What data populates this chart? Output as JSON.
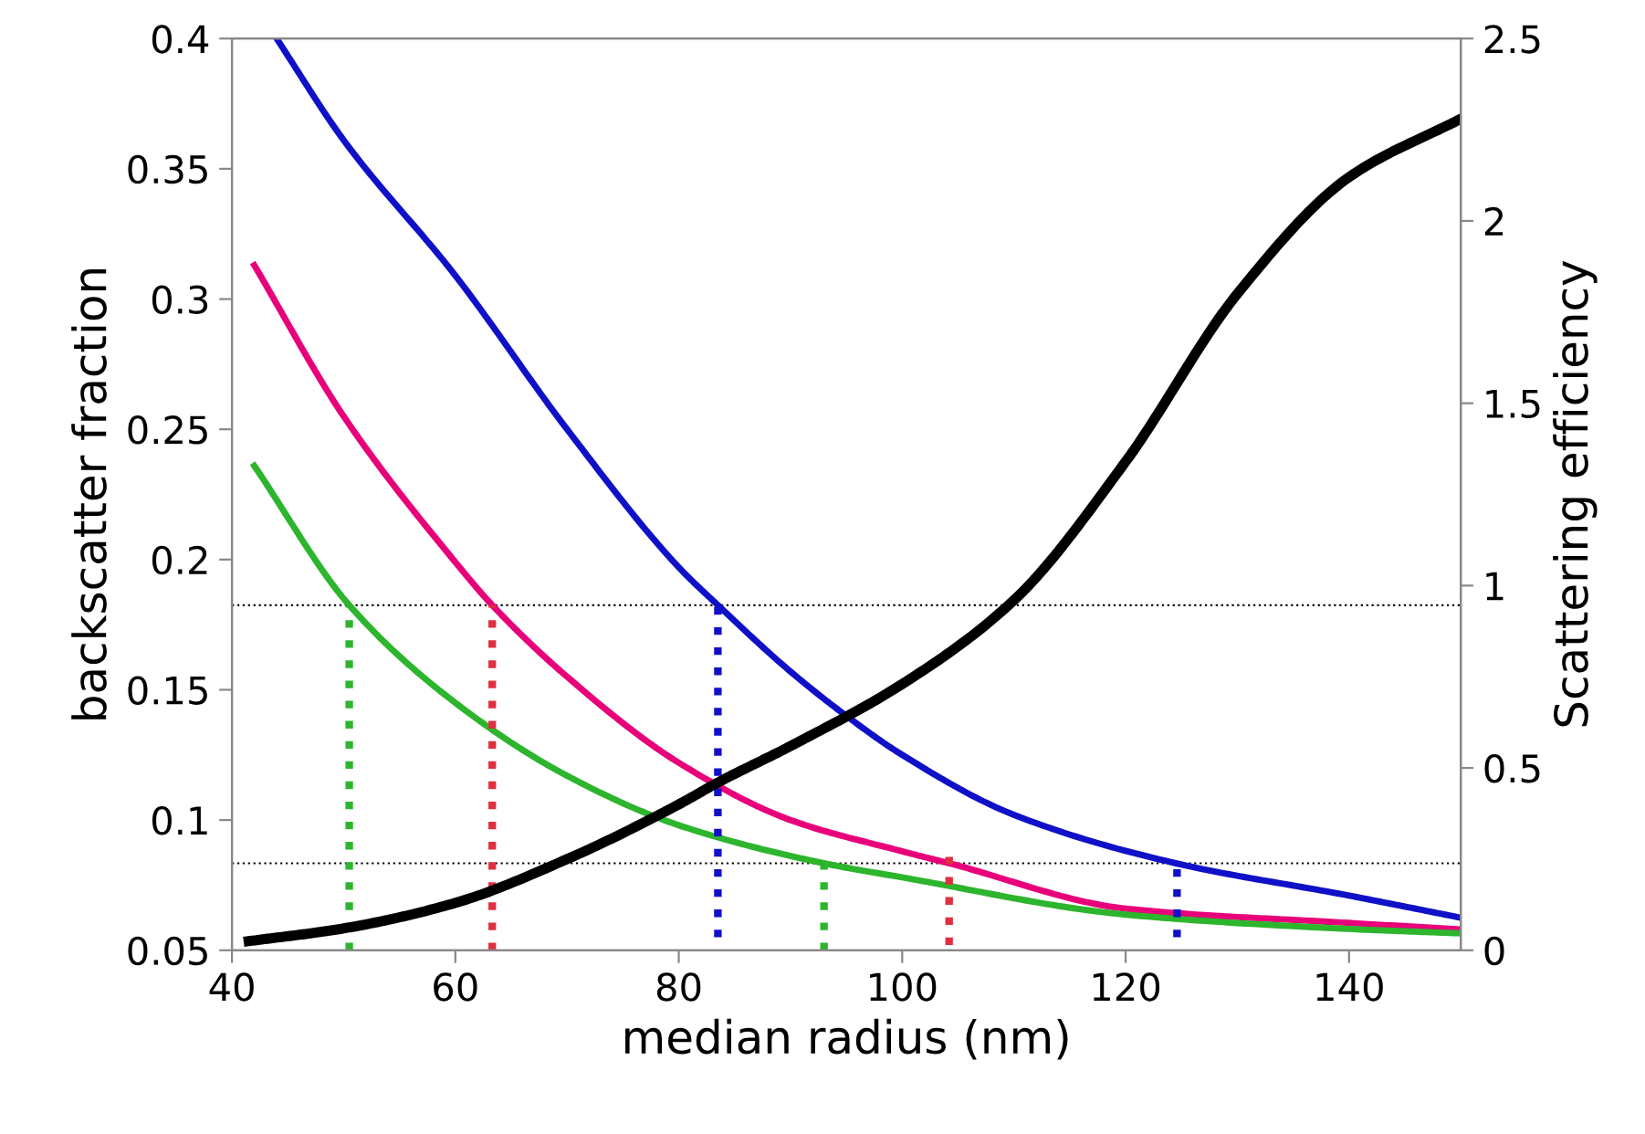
{
  "chart_data": {
    "type": "line",
    "xlabel": "median radius (nm)",
    "ylabel": "backscatter fraction",
    "y2label": "Scattering efficiency",
    "xlim": [
      40,
      150
    ],
    "xticks": [
      40,
      60,
      80,
      100,
      120,
      140
    ],
    "ylim": [
      0.05,
      0.4
    ],
    "yticks": [
      0.05,
      0.1,
      0.15,
      0.2,
      0.25,
      0.3,
      0.35,
      0.4
    ],
    "y2lim": [
      0,
      2.5
    ],
    "y2ticks": [
      0,
      0.5,
      1,
      1.5,
      2,
      2.5
    ],
    "grid": false,
    "legend": false,
    "marker": "none",
    "ref_lines": [
      {
        "axis": "y",
        "value": 0.1825,
        "color": "#000000",
        "line_style": "dotted"
      },
      {
        "axis": "y",
        "value": 0.0834,
        "color": "#000000",
        "line_style": "dotted"
      }
    ],
    "series": [
      {
        "color": "#1010c8",
        "line_style": "solid",
        "x": [
          44,
          50,
          60,
          70,
          80,
          83.5,
          90,
          95,
          100,
          110,
          124.5,
          140,
          150
        ],
        "values": [
          0.4,
          0.361,
          0.309,
          0.25,
          0.197,
          0.1825,
          0.157,
          0.14,
          0.125,
          0.102,
          0.0834,
          0.071,
          0.0625
        ]
      },
      {
        "color": "#e8007a",
        "line_style": "solid",
        "x": [
          42,
          50,
          60,
          63.3,
          70,
          80,
          90,
          100,
          104.2,
          120,
          140,
          150
        ],
        "values": [
          0.313,
          0.255,
          0.199,
          0.1825,
          0.155,
          0.122,
          0.1,
          0.088,
          0.0834,
          0.066,
          0.0605,
          0.058
        ]
      },
      {
        "color": "#2db52d",
        "line_style": "solid",
        "x": [
          42,
          50.5,
          60,
          70,
          80,
          93,
          100,
          120,
          140,
          150
        ],
        "values": [
          0.236,
          0.1825,
          0.145,
          0.117,
          0.098,
          0.0834,
          0.078,
          0.0637,
          0.0582,
          0.0565
        ]
      },
      {
        "color": "#000000",
        "line_style": "solid",
        "axis": "y2",
        "x": [
          41.5,
          50,
          60,
          70,
          80,
          83.5,
          90,
          100,
          110,
          120,
          130,
          140,
          150
        ],
        "values": [
          0.025,
          0.06,
          0.13,
          0.25,
          0.4,
          0.46,
          0.56,
          0.73,
          0.96,
          1.34,
          1.8,
          2.12,
          2.28
        ]
      },
      {
        "color": "#2db52d",
        "line_style": "dotted",
        "x": [
          50.5,
          50.5
        ],
        "values": [
          0.05,
          0.1825
        ]
      },
      {
        "color": "#e03040",
        "line_style": "dotted",
        "x": [
          63.3,
          63.3
        ],
        "values": [
          0.05,
          0.1825
        ]
      },
      {
        "color": "#1010c8",
        "line_style": "dotted",
        "x": [
          83.5,
          83.5
        ],
        "values": [
          0.055,
          0.1825
        ]
      },
      {
        "color": "#2db52d",
        "line_style": "dotted",
        "x": [
          93,
          93
        ],
        "values": [
          0.05,
          0.083
        ]
      },
      {
        "color": "#e03040",
        "line_style": "dotted",
        "x": [
          104.2,
          104.2
        ],
        "values": [
          0.052,
          0.087
        ]
      },
      {
        "color": "#1010c8",
        "line_style": "dotted",
        "x": [
          124.6,
          124.6
        ],
        "values": [
          0.055,
          0.083
        ]
      }
    ]
  }
}
